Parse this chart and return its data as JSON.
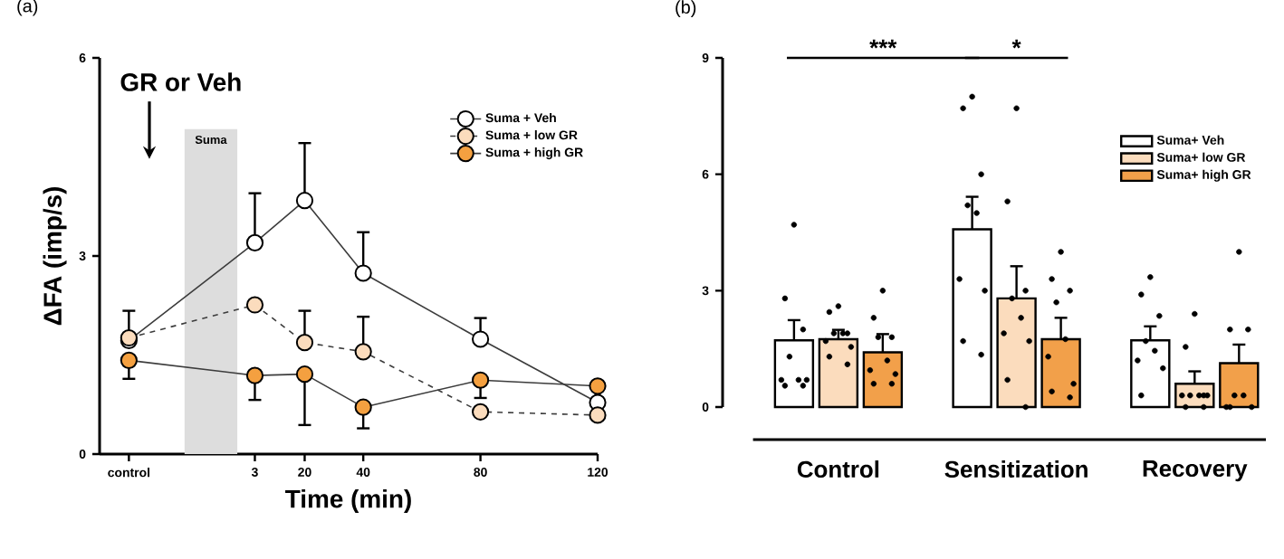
{
  "chart_data": [
    {
      "type": "line",
      "title": "(a)",
      "xlabel": "Time (min)",
      "ylabel": "ΔFA (imp/s)",
      "x": [
        -40,
        3,
        20,
        40,
        80,
        120
      ],
      "xlim": [
        -50,
        120
      ],
      "xticks": [
        {
          "value": -40,
          "label": "control"
        },
        3,
        20,
        40,
        80,
        120
      ],
      "ylim": [
        0,
        6
      ],
      "yticks": [
        0,
        3,
        6
      ],
      "marker": "circle",
      "legend": "top right",
      "bands": [
        {
          "axis": "x",
          "from": -21,
          "to": -3,
          "label": "Suma",
          "color": "#dddddd"
        }
      ],
      "annotations": [
        "GR or Veh"
      ],
      "series": [
        {
          "name": "Suma + Veh",
          "color": "#ffffff",
          "line_style": "solid",
          "values": [
            1.72,
            3.2,
            3.84,
            2.74,
            1.74,
            0.78
          ],
          "errors": [
            [
              1.72,
              2.17
            ],
            [
              3.2,
              3.95
            ],
            [
              3.84,
              4.71
            ],
            [
              2.74,
              3.36
            ],
            [
              1.74,
              2.06
            ],
            null
          ]
        },
        {
          "name": "Suma + low GR",
          "color": "#fbdcbd",
          "line_style": "dashed",
          "values": [
            1.76,
            2.26,
            1.69,
            1.55,
            0.64,
            0.59
          ],
          "errors": [
            null,
            null,
            [
              1.69,
              2.17
            ],
            [
              1.55,
              2.08
            ],
            null,
            null
          ]
        },
        {
          "name": "Suma + high GR",
          "color": "#f4a040",
          "line_style": "solid",
          "values": [
            1.42,
            1.19,
            1.21,
            0.71,
            1.12,
            1.03
          ],
          "errors": [
            [
              1.14,
              1.42
            ],
            [
              0.82,
              1.19
            ],
            [
              0.44,
              1.21
            ],
            [
              0.39,
              0.71
            ],
            [
              0.85,
              1.12
            ],
            null
          ]
        }
      ]
    },
    {
      "type": "bar",
      "title": "(b)",
      "categories": [
        "Control",
        "Sensitization",
        "Recovery"
      ],
      "ylim": [
        0,
        9
      ],
      "yticks": [
        0,
        3,
        6,
        9
      ],
      "legend": "top right",
      "annotations": [
        "***",
        "*"
      ],
      "series": [
        {
          "name": "Suma+ Veh",
          "color": "#ffffff",
          "values": [
            1.72,
            4.58,
            1.72
          ],
          "errors": [
            [
              1.72,
              2.24
            ],
            [
              4.58,
              5.42
            ],
            [
              1.72,
              2.08
            ]
          ]
        },
        {
          "name": "Suma+ low GR",
          "color": "#fbdcbd",
          "values": [
            1.75,
            2.8,
            0.6
          ],
          "errors": [
            [
              1.75,
              1.99
            ],
            [
              2.8,
              3.63
            ],
            [
              0.6,
              0.92
            ]
          ]
        },
        {
          "name": "Suma+ high GR",
          "color": "#f2a04a",
          "values": [
            1.41,
            1.75,
            1.13
          ],
          "errors": [
            [
              1.41,
              1.88
            ],
            [
              1.75,
              2.3
            ],
            [
              1.13,
              1.61
            ]
          ]
        },
        {
          "type": "scatter",
          "color": "#000000",
          "x": [
            "Control",
            "Control",
            "Control",
            "Control",
            "Control",
            "Control",
            "Control",
            "Control",
            "Control",
            "Sensitization",
            "Sensitization",
            "Sensitization",
            "Sensitization",
            "Sensitization",
            "Sensitization",
            "Sensitization",
            "Sensitization",
            "Sensitization",
            "Recovery",
            "Recovery",
            "Recovery",
            "Recovery",
            "Recovery",
            "Recovery",
            "Recovery",
            "Recovery"
          ],
          "values": [
            4.7,
            2.8,
            2.0,
            1.3,
            0.7,
            0.7,
            0.7,
            0.55,
            0.55,
            8.0,
            7.7,
            6.0,
            5.2,
            5.0,
            3.3,
            3.0,
            1.7,
            1.35,
            3.35,
            2.9,
            2.35,
            1.7,
            1.45,
            1.2,
            1.0,
            0.3
          ]
        },
        {
          "type": "scatter",
          "color": "#000000",
          "x": [
            "Control",
            "Control",
            "Control",
            "Control",
            "Control",
            "Control",
            "Control",
            "Control",
            "Control",
            "Sensitization",
            "Sensitization",
            "Sensitization",
            "Sensitization",
            "Sensitization",
            "Sensitization",
            "Sensitization",
            "Sensitization",
            "Sensitization",
            "Recovery",
            "Recovery",
            "Recovery",
            "Recovery",
            "Recovery",
            "Recovery",
            "Recovery",
            "Recovery",
            "Recovery"
          ],
          "values": [
            2.6,
            2.45,
            1.9,
            1.9,
            1.9,
            1.7,
            1.55,
            1.3,
            1.1,
            7.7,
            5.3,
            3.0,
            2.8,
            2.3,
            1.9,
            1.7,
            0.7,
            0,
            2.4,
            1.55,
            0.3,
            0.3,
            0.3,
            0.3,
            0.3,
            0,
            0
          ]
        },
        {
          "type": "scatter",
          "color": "#000000",
          "x": [
            "Control",
            "Control",
            "Control",
            "Control",
            "Control",
            "Control",
            "Control",
            "Control",
            "Control",
            "Sensitization",
            "Sensitization",
            "Sensitization",
            "Sensitization",
            "Sensitization",
            "Sensitization",
            "Sensitization",
            "Sensitization",
            "Sensitization",
            "Recovery",
            "Recovery",
            "Recovery",
            "Recovery",
            "Recovery",
            "Recovery",
            "Recovery",
            "Recovery"
          ],
          "values": [
            3.0,
            2.3,
            1.8,
            1.8,
            1.2,
            0.95,
            0.85,
            0.6,
            0.6,
            4.0,
            3.3,
            3.0,
            2.7,
            1.75,
            1.3,
            0.6,
            0.4,
            0.25,
            4.0,
            2.0,
            2.0,
            0.3,
            0.3,
            0,
            0,
            0
          ]
        }
      ]
    }
  ]
}
